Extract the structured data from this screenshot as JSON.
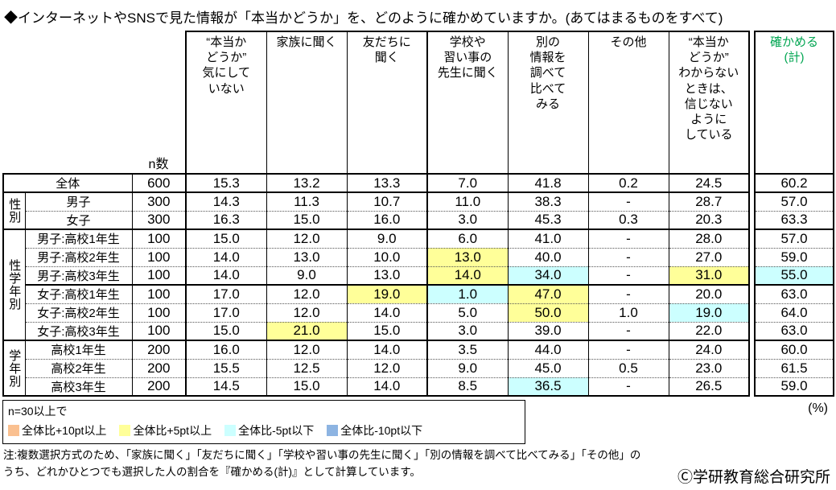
{
  "title": "◆インターネットやSNSで見た情報が「本当かどうか」を、どのように確かめていますか。(あてはまるものをすべて)",
  "chart_data": {
    "type": "table",
    "unit": "(%)",
    "n_header": "n数",
    "columns": [
      "“本当か\nどうか”\n気にして\nいない",
      "家族に聞く",
      "友だちに\n聞く",
      "学校や\n習い事の\n先生に聞く",
      "別の\n情報を\n調べて\n比べて\nみる",
      "その他",
      "“本当か\nどうか”\nわからない\nときは、\n信じない\nように\nしている",
      "確かめる\n(計)"
    ],
    "groups": [
      {
        "label": "",
        "rows": [
          {
            "label": "全体",
            "n": "600",
            "values": [
              "15.3",
              "13.2",
              "13.3",
              "7.0",
              "41.8",
              "0.2",
              "24.5"
            ],
            "total": "60.2"
          }
        ]
      },
      {
        "label": "性別",
        "rows": [
          {
            "label": "男子",
            "n": "300",
            "values": [
              "14.3",
              "11.3",
              "10.7",
              "11.0",
              "38.3",
              "-",
              "28.7"
            ],
            "total": "57.0"
          },
          {
            "label": "女子",
            "n": "300",
            "values": [
              "16.3",
              "15.0",
              "16.0",
              "3.0",
              "45.3",
              "0.3",
              "20.3"
            ],
            "total": "63.3"
          }
        ]
      },
      {
        "label": "性学年別",
        "rows": [
          {
            "label": "男子:高校1年生",
            "n": "100",
            "values": [
              "15.0",
              "12.0",
              "9.0",
              "6.0",
              "41.0",
              "-",
              "28.0"
            ],
            "total": "57.0"
          },
          {
            "label": "男子:高校2年生",
            "n": "100",
            "values": [
              "14.0",
              "13.0",
              "10.0",
              "13.0",
              "40.0",
              "-",
              "27.0"
            ],
            "total": "59.0",
            "highlights": {
              "3": "plus5"
            }
          },
          {
            "label": "男子:高校3年生",
            "n": "100",
            "values": [
              "14.0",
              "9.0",
              "13.0",
              "14.0",
              "34.0",
              "-",
              "31.0"
            ],
            "total": "55.0",
            "highlights": {
              "3": "plus5",
              "4": "minus5",
              "6": "plus5"
            },
            "total_highlight": "minus5"
          },
          {
            "label": "女子:高校1年生",
            "n": "100",
            "values": [
              "17.0",
              "12.0",
              "19.0",
              "1.0",
              "47.0",
              "-",
              "20.0"
            ],
            "total": "63.0",
            "highlights": {
              "2": "plus5",
              "3": "minus5",
              "4": "plus5"
            },
            "rule_above": "solid"
          },
          {
            "label": "女子:高校2年生",
            "n": "100",
            "values": [
              "17.0",
              "12.0",
              "14.0",
              "5.0",
              "50.0",
              "1.0",
              "19.0"
            ],
            "total": "64.0",
            "highlights": {
              "4": "plus5",
              "6": "minus5"
            }
          },
          {
            "label": "女子:高校3年生",
            "n": "100",
            "values": [
              "15.0",
              "21.0",
              "15.0",
              "3.0",
              "39.0",
              "-",
              "22.0"
            ],
            "total": "63.0",
            "highlights": {
              "1": "plus5"
            }
          }
        ]
      },
      {
        "label": "学年別",
        "rows": [
          {
            "label": "高校1年生",
            "n": "200",
            "values": [
              "16.0",
              "12.0",
              "14.0",
              "3.5",
              "44.0",
              "-",
              "24.0"
            ],
            "total": "60.0"
          },
          {
            "label": "高校2年生",
            "n": "200",
            "values": [
              "15.5",
              "12.5",
              "12.0",
              "9.0",
              "45.0",
              "0.5",
              "23.0"
            ],
            "total": "61.5"
          },
          {
            "label": "高校3年生",
            "n": "200",
            "values": [
              "14.5",
              "15.0",
              "14.0",
              "8.5",
              "36.5",
              "-",
              "26.5"
            ],
            "total": "59.0",
            "highlights": {
              "4": "minus5"
            }
          }
        ]
      }
    ],
    "legend": {
      "note": "n=30以上で",
      "items": [
        {
          "key": "plus10",
          "label": "全体比+10pt以上",
          "color": "#FAC090"
        },
        {
          "key": "plus5",
          "label": "全体比+5pt以上",
          "color": "#FFFF99"
        },
        {
          "key": "minus5",
          "label": "全体比-5pt以下",
          "color": "#CCFFFF"
        },
        {
          "key": "minus10",
          "label": "全体比-10pt以下",
          "color": "#8DB4E2"
        }
      ]
    },
    "colors": {
      "total_header_green": "#00A551"
    },
    "footnote_line1": "注:複数選択方式のため、「家族に聞く」「友だちに聞く」「学校や習い事の先生に聞く」「別の情報を調べて比べてみる」「その他」の",
    "footnote_line2": "うち、どれかひとつでも選択した人の割合を『確かめる(計)』として計算しています。",
    "copyright": "Ⓒ学研教育総合研究所"
  }
}
